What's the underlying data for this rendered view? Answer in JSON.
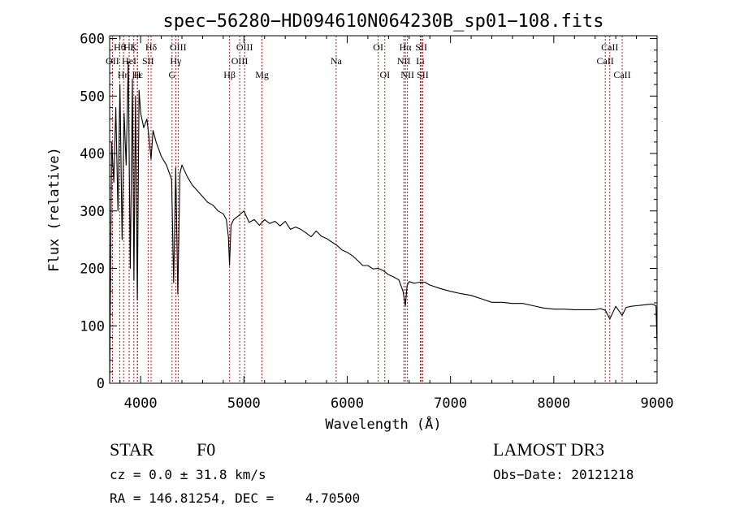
{
  "chart_data": {
    "type": "line",
    "title": "spec−56280−HD094610N064230B_sp01−108.fits",
    "xlabel": "Wavelength (Å)",
    "ylabel": "Flux (relative)",
    "xlim": [
      3700,
      9000
    ],
    "ylim": [
      0,
      605
    ],
    "xticks": [
      4000,
      5000,
      6000,
      7000,
      8000,
      9000
    ],
    "yticks": [
      0,
      100,
      200,
      300,
      400,
      500,
      600
    ],
    "grid": false,
    "series": [
      {
        "name": "flux",
        "x": [
          3700,
          3720,
          3740,
          3760,
          3780,
          3800,
          3820,
          3840,
          3860,
          3880,
          3900,
          3920,
          3935,
          3950,
          3968,
          3985,
          4000,
          4030,
          4060,
          4080,
          4101,
          4120,
          4150,
          4200,
          4250,
          4300,
          4320,
          4340,
          4360,
          4380,
          4400,
          4450,
          4500,
          4550,
          4600,
          4650,
          4700,
          4750,
          4800,
          4830,
          4850,
          4861,
          4875,
          4900,
          4950,
          5000,
          5050,
          5100,
          5150,
          5200,
          5250,
          5300,
          5350,
          5400,
          5450,
          5500,
          5550,
          5600,
          5650,
          5700,
          5750,
          5800,
          5850,
          5900,
          5950,
          6000,
          6050,
          6100,
          6150,
          6200,
          6250,
          6300,
          6350,
          6400,
          6450,
          6500,
          6540,
          6563,
          6580,
          6600,
          6650,
          6700,
          6750,
          6800,
          6900,
          7000,
          7100,
          7200,
          7300,
          7400,
          7500,
          7600,
          7700,
          7800,
          7900,
          8000,
          8100,
          8200,
          8300,
          8400,
          8450,
          8500,
          8542,
          8600,
          8662,
          8700,
          8750,
          8800,
          8850,
          8900,
          8950,
          8990,
          9000
        ],
        "y": [
          0,
          420,
          350,
          480,
          300,
          520,
          250,
          470,
          380,
          560,
          200,
          530,
          180,
          500,
          145,
          510,
          470,
          445,
          460,
          430,
          390,
          440,
          420,
          395,
          380,
          355,
          175,
          375,
          155,
          365,
          380,
          360,
          345,
          335,
          325,
          315,
          310,
          300,
          295,
          285,
          255,
          205,
          275,
          285,
          292,
          300,
          280,
          285,
          275,
          285,
          278,
          282,
          274,
          282,
          268,
          272,
          268,
          262,
          255,
          265,
          256,
          252,
          246,
          240,
          232,
          228,
          222,
          214,
          205,
          205,
          199,
          200,
          196,
          189,
          185,
          180,
          160,
          135,
          170,
          177,
          174,
          176,
          176,
          171,
          165,
          160,
          156,
          153,
          147,
          141,
          141,
          139,
          139,
          135,
          131,
          129,
          129,
          128,
          128,
          128,
          130,
          127,
          112,
          134,
          118,
          132,
          134,
          135,
          136,
          137,
          138,
          135,
          65
        ]
      }
    ],
    "line_marks": [
      {
        "label": "OII",
        "x": 3727,
        "row": 2
      },
      {
        "label": "Hθ",
        "x": 3797,
        "row": 1
      },
      {
        "label": "Hη",
        "x": 3835,
        "row": 3
      },
      {
        "label": "HeI",
        "x": 3889,
        "row": 2
      },
      {
        "label": "Hζ",
        "x": 3889,
        "row": 1
      },
      {
        "label": "Hε",
        "x": 3970,
        "row": 3
      },
      {
        "label": "K",
        "x": 3934,
        "row": 1
      },
      {
        "label": "H",
        "x": 3968,
        "row": 3
      },
      {
        "label": "SII",
        "x": 4072,
        "row": 2
      },
      {
        "label": "Hδ",
        "x": 4101,
        "row": 1
      },
      {
        "label": "G",
        "x": 4304,
        "row": 3
      },
      {
        "label": "Hγ",
        "x": 4340,
        "row": 2
      },
      {
        "label": "OIII",
        "x": 4363,
        "row": 1
      },
      {
        "label": "Hβ",
        "x": 4861,
        "row": 3
      },
      {
        "label": "OIII",
        "x": 4959,
        "row": 2
      },
      {
        "label": "OIII",
        "x": 5007,
        "row": 1
      },
      {
        "label": "Mg",
        "x": 5175,
        "row": 3
      },
      {
        "label": "Na",
        "x": 5893,
        "row": 2
      },
      {
        "label": "OI",
        "x": 6300,
        "row": 1
      },
      {
        "label": "OI",
        "x": 6364,
        "row": 3
      },
      {
        "label": "NII",
        "x": 6548,
        "row": 2
      },
      {
        "label": "Hα",
        "x": 6563,
        "row": 1
      },
      {
        "label": "NII",
        "x": 6583,
        "row": 3
      },
      {
        "label": "Li",
        "x": 6708,
        "row": 2
      },
      {
        "label": "SII",
        "x": 6717,
        "row": 1
      },
      {
        "label": "SII",
        "x": 6731,
        "row": 3
      },
      {
        "label": "CaII",
        "x": 8498,
        "row": 2
      },
      {
        "label": "CaII",
        "x": 8542,
        "row": 1
      },
      {
        "label": "CaII",
        "x": 8662,
        "row": 3
      }
    ]
  },
  "info": {
    "object_class": "STAR",
    "subclass": "F0",
    "survey": "LAMOST DR3",
    "redshift": "cz = 0.0 ± 31.8 km/s",
    "obs_date": "Obs−Date: 20121218",
    "coords": "RA = 146.81254, DEC =    4.70500"
  },
  "colors": {
    "spectrum": "#000000",
    "line_marks": "#b00000"
  }
}
